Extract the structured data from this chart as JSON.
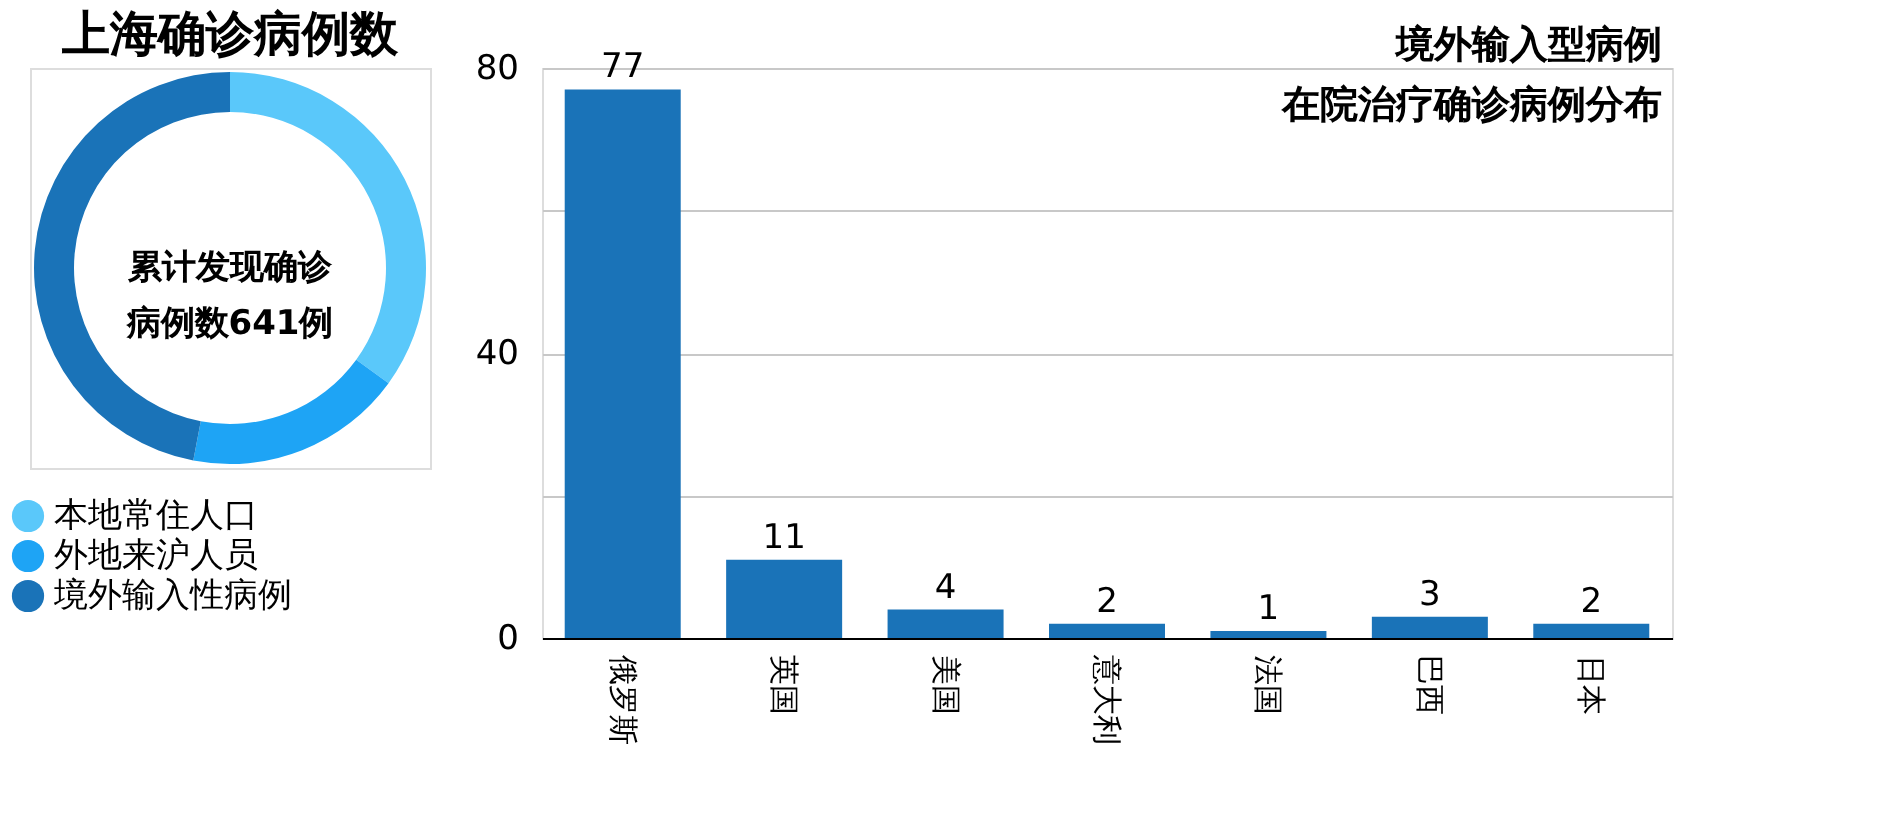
{
  "chart_data": [
    {
      "type": "donut",
      "title": "上海确诊病例数",
      "categories": [
        "本地常住人口",
        "外地来沪人员",
        "境外输入性病例"
      ],
      "values": [
        35,
        18,
        47
      ],
      "colors": [
        "#5ac8fa",
        "#1ea4f5",
        "#1a73b8"
      ],
      "annotations": [
        "累计发现确诊病例数641例"
      ],
      "legend": "bottom left"
    },
    {
      "type": "bar",
      "title": "境外输入型病例在院治疗确诊病例分布",
      "categories": [
        "俄罗斯",
        "英国",
        "美国",
        "意大利",
        "法国",
        "巴西",
        "日本"
      ],
      "values": [
        77,
        11,
        4,
        2,
        1,
        3,
        2
      ],
      "color": "#1a73b8",
      "ylim": [
        0,
        80
      ],
      "yticks": [
        0,
        {
          "value": 20,
          "label": null
        },
        40,
        {
          "value": 60,
          "label": null
        },
        80
      ],
      "grid": "y",
      "data_labels": true
    }
  ]
}
